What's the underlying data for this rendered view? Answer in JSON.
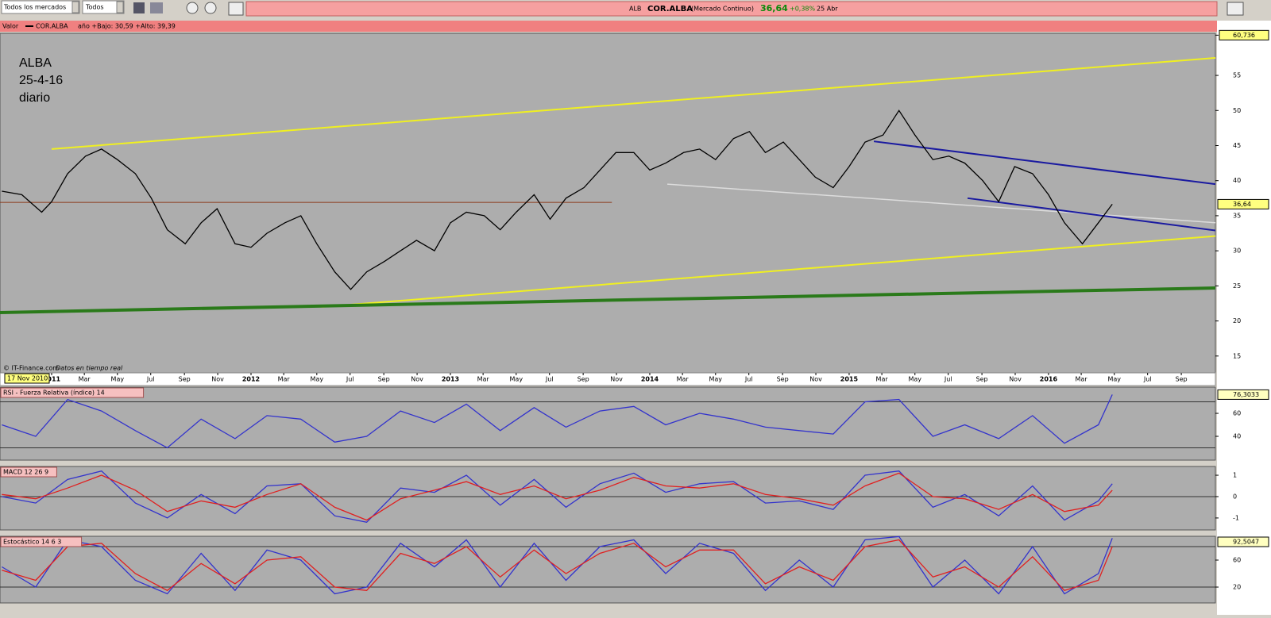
{
  "toolbar": {
    "market_select": "Todos los mercados",
    "filter_select": "Todos"
  },
  "quote_bar": {
    "ticker": "ALB",
    "name": "COR.ALBA",
    "market": "(Mercado Continuo)",
    "price": "36,64",
    "change": "+0,38%",
    "date": "25 Abr"
  },
  "info_bar": {
    "label": "Valor",
    "stats": "año +Bajo: 30,59 +Alto: 39,39"
  },
  "annotations": [
    "ALBA",
    "25-4-16",
    "diario"
  ],
  "footer_note": {
    "source": "© IT-Finance.com",
    "realtime": "Datos en tiempo real"
  },
  "cursor_date": "17 Nov 2010",
  "chart_data": [
    {
      "type": "line",
      "xlim": [
        2010.741,
        2016.837
      ],
      "ylim": [
        12.6,
        61
      ],
      "xticks": [
        {
          "value": 2011,
          "label": "2011"
        },
        {
          "value": 2011.164,
          "label": "Mar"
        },
        {
          "value": 2011.33,
          "label": "May"
        },
        {
          "value": 2011.497,
          "label": "Jul"
        },
        {
          "value": 2011.666,
          "label": "Sep"
        },
        {
          "value": 2011.833,
          "label": "Nov"
        },
        {
          "value": 2012,
          "label": "2012"
        },
        {
          "value": 2012.164,
          "label": "Mar"
        },
        {
          "value": 2012.33,
          "label": "May"
        },
        {
          "value": 2012.497,
          "label": "Jul"
        },
        {
          "value": 2012.666,
          "label": "Sep"
        },
        {
          "value": 2012.833,
          "label": "Nov"
        },
        {
          "value": 2013,
          "label": "2013"
        },
        {
          "value": 2013.164,
          "label": "Mar"
        },
        {
          "value": 2013.33,
          "label": "May"
        },
        {
          "value": 2013.497,
          "label": "Jul"
        },
        {
          "value": 2013.666,
          "label": "Sep"
        },
        {
          "value": 2013.833,
          "label": "Nov"
        },
        {
          "value": 2014,
          "label": "2014"
        },
        {
          "value": 2014.164,
          "label": "Mar"
        },
        {
          "value": 2014.33,
          "label": "May"
        },
        {
          "value": 2014.497,
          "label": "Jul"
        },
        {
          "value": 2014.666,
          "label": "Sep"
        },
        {
          "value": 2014.833,
          "label": "Nov"
        },
        {
          "value": 2015,
          "label": "2015"
        },
        {
          "value": 2015.164,
          "label": "Mar"
        },
        {
          "value": 2015.33,
          "label": "May"
        },
        {
          "value": 2015.497,
          "label": "Jul"
        },
        {
          "value": 2015.666,
          "label": "Sep"
        },
        {
          "value": 2015.833,
          "label": "Nov"
        },
        {
          "value": 2016,
          "label": "2016"
        },
        {
          "value": 2016.164,
          "label": "Mar"
        },
        {
          "value": 2016.33,
          "label": "May"
        },
        {
          "value": 2016.497,
          "label": "Jul"
        },
        {
          "value": 2016.666,
          "label": "Sep"
        }
      ],
      "yticks": [
        15,
        20,
        25,
        30,
        35,
        40,
        45,
        50,
        55,
        {
          "value": 60.736,
          "label": "60,736"
        }
      ],
      "last_value": {
        "value": 36.64,
        "label": "36,64"
      },
      "x": [
        2010.75,
        2010.85,
        2010.95,
        2011.0,
        2011.08,
        2011.17,
        2011.25,
        2011.33,
        2011.42,
        2011.5,
        2011.58,
        2011.67,
        2011.75,
        2011.83,
        2011.92,
        2012.0,
        2012.08,
        2012.17,
        2012.25,
        2012.33,
        2012.42,
        2012.5,
        2012.58,
        2012.67,
        2012.75,
        2012.83,
        2012.92,
        2013.0,
        2013.08,
        2013.17,
        2013.25,
        2013.33,
        2013.42,
        2013.5,
        2013.58,
        2013.67,
        2013.75,
        2013.83,
        2013.92,
        2014.0,
        2014.08,
        2014.17,
        2014.25,
        2014.33,
        2014.42,
        2014.5,
        2014.58,
        2014.67,
        2014.75,
        2014.83,
        2014.92,
        2015.0,
        2015.08,
        2015.17,
        2015.25,
        2015.33,
        2015.42,
        2015.5,
        2015.58,
        2015.67,
        2015.75,
        2015.83,
        2015.92,
        2016.0,
        2016.08,
        2016.17,
        2016.25,
        2016.32
      ],
      "series": [
        {
          "name": "COR.ALBA",
          "color": "#000000",
          "values": [
            38.5,
            38,
            35.5,
            37,
            41,
            43.5,
            44.5,
            43,
            41,
            37.5,
            33,
            31,
            34,
            36,
            31,
            30.5,
            32.5,
            34,
            35,
            31,
            27,
            24.5,
            27,
            28.5,
            30,
            31.5,
            30,
            34,
            35.5,
            35,
            33,
            35.5,
            38,
            34.5,
            37.5,
            39,
            41.5,
            44,
            44,
            41.5,
            42.5,
            44,
            44.5,
            43,
            46,
            47,
            44,
            45.5,
            43,
            40.5,
            39,
            42,
            45.5,
            46.5,
            50,
            46.5,
            43,
            43.5,
            42.5,
            40,
            37,
            42,
            41,
            38,
            34,
            31,
            34,
            36.64
          ]
        }
      ],
      "trendlines": [
        {
          "color": "#f0f020",
          "width": 2,
          "x": [
            2011.0,
            2016.837
          ],
          "y": [
            44.5,
            57.5
          ]
        },
        {
          "color": "#f0f020",
          "width": 2,
          "x": [
            2012.355,
            2016.837
          ],
          "y": [
            22,
            32.1
          ]
        },
        {
          "color": "#2a7a1a",
          "width": 4,
          "x": [
            2010.741,
            2016.837
          ],
          "y": [
            21.2,
            24.7
          ]
        },
        {
          "color": "#8b3a1a",
          "width": 1,
          "x": [
            2010.741,
            2013.81
          ],
          "y": [
            36.9,
            36.9
          ]
        },
        {
          "color": "#dcdcdc",
          "width": 1.5,
          "x": [
            2014.088,
            2016.837
          ],
          "y": [
            39.5,
            34
          ]
        },
        {
          "color": "#1a1aa0",
          "width": 2,
          "x": [
            2015.124,
            2016.837
          ],
          "y": [
            45.6,
            39.5
          ]
        },
        {
          "color": "#1a1aa0",
          "width": 2,
          "x": [
            2015.594,
            2016.837
          ],
          "y": [
            37.5,
            32.9
          ]
        }
      ]
    },
    {
      "type": "line",
      "title": "RSI - Fuerza Relativa (índice) 14",
      "xlim": [
        2010.741,
        2016.837
      ],
      "ylim": [
        19.3,
        82.8
      ],
      "yticks": [
        40,
        60
      ],
      "levels": [
        70,
        30
      ],
      "last_value": {
        "value": 76.3033,
        "label": "76,3033"
      },
      "x": [
        2010.75,
        2010.92,
        2011.08,
        2011.25,
        2011.42,
        2011.58,
        2011.75,
        2011.92,
        2012.08,
        2012.25,
        2012.42,
        2012.58,
        2012.75,
        2012.92,
        2013.08,
        2013.25,
        2013.42,
        2013.58,
        2013.75,
        2013.92,
        2014.08,
        2014.25,
        2014.42,
        2014.58,
        2014.75,
        2014.92,
        2015.08,
        2015.25,
        2015.42,
        2015.58,
        2015.75,
        2015.92,
        2016.08,
        2016.25,
        2016.32
      ],
      "series": [
        {
          "color": "#3333cc",
          "values": [
            50,
            40,
            72,
            62,
            45,
            30,
            55,
            38,
            58,
            55,
            35,
            40,
            62,
            52,
            68,
            45,
            65,
            48,
            62,
            66,
            50,
            60,
            55,
            48,
            45,
            42,
            70,
            72,
            40,
            50,
            38,
            58,
            34,
            50,
            76.3033
          ]
        }
      ]
    },
    {
      "type": "line",
      "title": "MACD 12 26 9",
      "xlim": [
        2010.741,
        2016.837
      ],
      "ylim": [
        -1.56,
        1.41
      ],
      "yticks": [
        -1,
        0,
        1
      ],
      "levels": [
        0
      ],
      "x": [
        2010.75,
        2010.92,
        2011.08,
        2011.25,
        2011.42,
        2011.58,
        2011.75,
        2011.92,
        2012.08,
        2012.25,
        2012.42,
        2012.58,
        2012.75,
        2012.92,
        2013.08,
        2013.25,
        2013.42,
        2013.58,
        2013.75,
        2013.92,
        2014.08,
        2014.25,
        2014.42,
        2014.58,
        2014.75,
        2014.92,
        2015.08,
        2015.25,
        2015.42,
        2015.58,
        2015.75,
        2015.92,
        2016.08,
        2016.25,
        2016.32
      ],
      "series": [
        {
          "color": "#3333cc",
          "values": [
            0,
            -0.3,
            0.8,
            1.2,
            -0.3,
            -1.0,
            0.1,
            -0.8,
            0.5,
            0.6,
            -0.9,
            -1.2,
            0.4,
            0.2,
            1.0,
            -0.4,
            0.8,
            -0.5,
            0.6,
            1.1,
            0.2,
            0.6,
            0.7,
            -0.3,
            -0.2,
            -0.6,
            1.0,
            1.2,
            -0.5,
            0.1,
            -0.9,
            0.5,
            -1.1,
            -0.2,
            0.6
          ]
        },
        {
          "color": "#e02020",
          "values": [
            0.1,
            -0.1,
            0.4,
            1.0,
            0.3,
            -0.7,
            -0.2,
            -0.5,
            0.1,
            0.6,
            -0.5,
            -1.1,
            -0.1,
            0.3,
            0.7,
            0.1,
            0.5,
            -0.1,
            0.3,
            0.9,
            0.5,
            0.4,
            0.6,
            0.1,
            -0.1,
            -0.4,
            0.5,
            1.1,
            0.0,
            -0.1,
            -0.6,
            0.1,
            -0.7,
            -0.4,
            0.3
          ]
        }
      ]
    },
    {
      "type": "line",
      "title": "Estocástico 14 6 3",
      "xlim": [
        2010.741,
        2016.837
      ],
      "ylim": [
        -3.5,
        95.3
      ],
      "yticks": [
        20,
        60
      ],
      "levels": [
        80,
        20
      ],
      "last_value": {
        "value": 92.5047,
        "label": "92,5047"
      },
      "x": [
        2010.75,
        2010.92,
        2011.08,
        2011.25,
        2011.42,
        2011.58,
        2011.75,
        2011.92,
        2012.08,
        2012.25,
        2012.42,
        2012.58,
        2012.75,
        2012.92,
        2013.08,
        2013.25,
        2013.42,
        2013.58,
        2013.75,
        2013.92,
        2014.08,
        2014.25,
        2014.42,
        2014.58,
        2014.75,
        2014.92,
        2015.08,
        2015.25,
        2015.42,
        2015.58,
        2015.75,
        2015.92,
        2016.08,
        2016.25,
        2016.32
      ],
      "series": [
        {
          "color": "#3333cc",
          "values": [
            50,
            20,
            90,
            80,
            30,
            10,
            70,
            15,
            75,
            60,
            10,
            20,
            85,
            50,
            90,
            20,
            85,
            30,
            80,
            90,
            40,
            85,
            70,
            15,
            60,
            20,
            90,
            95,
            20,
            60,
            10,
            80,
            10,
            40,
            92.5047
          ]
        },
        {
          "color": "#e02020",
          "values": [
            45,
            30,
            80,
            85,
            40,
            15,
            55,
            25,
            60,
            65,
            20,
            15,
            70,
            55,
            80,
            35,
            75,
            40,
            70,
            85,
            50,
            75,
            75,
            25,
            50,
            30,
            80,
            90,
            35,
            50,
            20,
            65,
            15,
            30,
            80
          ]
        }
      ]
    }
  ]
}
